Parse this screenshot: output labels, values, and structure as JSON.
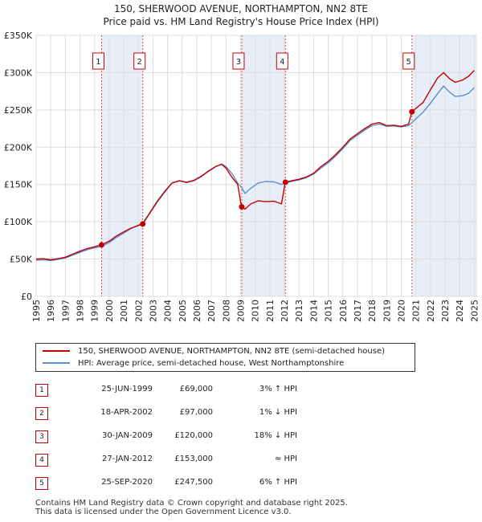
{
  "chart_data": {
    "type": "line",
    "title": "150, SHERWOOD AVENUE, NORTHAMPTON, NN2 8TE",
    "subtitle": "Price paid vs. HM Land Registry's House Price Index (HPI)",
    "x_range": [
      1995.0,
      2025.2
    ],
    "ylim": [
      0,
      350000
    ],
    "y_ticks": [
      {
        "value": 0,
        "label": "£0"
      },
      {
        "value": 50000,
        "label": "£50K"
      },
      {
        "value": 100000,
        "label": "£100K"
      },
      {
        "value": 150000,
        "label": "£150K"
      },
      {
        "value": 200000,
        "label": "£200K"
      },
      {
        "value": 250000,
        "label": "£250K"
      },
      {
        "value": 300000,
        "label": "£300K"
      },
      {
        "value": 350000,
        "label": "£350K"
      }
    ],
    "x_ticks": [
      "1995",
      "1996",
      "1997",
      "1998",
      "1999",
      "2000",
      "2001",
      "2002",
      "2003",
      "2004",
      "2005",
      "2006",
      "2007",
      "2008",
      "2009",
      "2010",
      "2011",
      "2012",
      "2013",
      "2014",
      "2015",
      "2016",
      "2017",
      "2018",
      "2019",
      "2020",
      "2021",
      "2022",
      "2023",
      "2024",
      "2025"
    ],
    "grid": true,
    "colors": {
      "property": "#c00000",
      "hpi": "#5b8fd0",
      "band": "#e8eef8",
      "vline": "#d05050"
    },
    "series": [
      {
        "name": "150, SHERWOOD AVENUE, NORTHAMPTON, NN2 8TE (semi-detached house)",
        "color": "#c00000",
        "points": [
          [
            1995.0,
            50000
          ],
          [
            1995.5,
            50500
          ],
          [
            1996.0,
            49000
          ],
          [
            1996.5,
            50500
          ],
          [
            1997.0,
            52500
          ],
          [
            1997.5,
            56500
          ],
          [
            1998.0,
            60500
          ],
          [
            1998.5,
            64000
          ],
          [
            1999.0,
            66500
          ],
          [
            1999.48,
            69000
          ],
          [
            2000.0,
            74000
          ],
          [
            2000.5,
            81000
          ],
          [
            2001.0,
            86500
          ],
          [
            2001.5,
            91500
          ],
          [
            2002.0,
            95000
          ],
          [
            2002.3,
            97000
          ],
          [
            2002.8,
            112000
          ],
          [
            2003.3,
            127000
          ],
          [
            2003.8,
            140000
          ],
          [
            2004.3,
            152000
          ],
          [
            2004.8,
            155000
          ],
          [
            2005.3,
            153000
          ],
          [
            2005.8,
            155500
          ],
          [
            2006.3,
            161000
          ],
          [
            2006.8,
            168000
          ],
          [
            2007.3,
            174000
          ],
          [
            2007.7,
            177000
          ],
          [
            2008.0,
            172000
          ],
          [
            2008.4,
            160000
          ],
          [
            2008.8,
            150000
          ],
          [
            2009.06,
            120000
          ],
          [
            2009.3,
            117000
          ],
          [
            2009.7,
            124000
          ],
          [
            2010.2,
            128000
          ],
          [
            2010.7,
            127000
          ],
          [
            2011.3,
            127500
          ],
          [
            2011.8,
            124000
          ],
          [
            2012.06,
            153000
          ],
          [
            2012.5,
            155000
          ],
          [
            2013.0,
            157000
          ],
          [
            2013.5,
            160000
          ],
          [
            2014.0,
            165000
          ],
          [
            2014.5,
            174000
          ],
          [
            2015.0,
            181000
          ],
          [
            2015.5,
            190000
          ],
          [
            2016.0,
            200000
          ],
          [
            2016.5,
            211000
          ],
          [
            2017.0,
            218000
          ],
          [
            2017.5,
            225000
          ],
          [
            2018.0,
            231000
          ],
          [
            2018.5,
            233000
          ],
          [
            2019.0,
            229000
          ],
          [
            2019.5,
            229500
          ],
          [
            2020.0,
            228000
          ],
          [
            2020.5,
            231000
          ],
          [
            2020.73,
            247500
          ],
          [
            2021.0,
            252000
          ],
          [
            2021.5,
            260000
          ],
          [
            2022.0,
            277000
          ],
          [
            2022.5,
            293000
          ],
          [
            2022.9,
            300000
          ],
          [
            2023.3,
            292000
          ],
          [
            2023.7,
            287000
          ],
          [
            2024.2,
            290000
          ],
          [
            2024.6,
            295000
          ],
          [
            2025.0,
            303000
          ]
        ]
      },
      {
        "name": "HPI: Average price, semi-detached house, West Northamptonshire",
        "color": "#5b8fd0",
        "points": [
          [
            1995.0,
            48500
          ],
          [
            1995.5,
            49000
          ],
          [
            1996.0,
            48000
          ],
          [
            1996.5,
            49500
          ],
          [
            1997.0,
            51500
          ],
          [
            1997.5,
            55000
          ],
          [
            1998.0,
            59000
          ],
          [
            1998.5,
            62500
          ],
          [
            1999.0,
            65000
          ],
          [
            1999.48,
            67000
          ],
          [
            2000.0,
            72000
          ],
          [
            2000.5,
            79000
          ],
          [
            2001.0,
            85000
          ],
          [
            2001.5,
            91000
          ],
          [
            2002.0,
            95500
          ],
          [
            2002.3,
            98000
          ],
          [
            2002.8,
            113000
          ],
          [
            2003.3,
            128000
          ],
          [
            2003.8,
            141000
          ],
          [
            2004.3,
            152000
          ],
          [
            2004.8,
            155000
          ],
          [
            2005.3,
            152500
          ],
          [
            2005.8,
            155000
          ],
          [
            2006.3,
            160500
          ],
          [
            2006.8,
            167500
          ],
          [
            2007.3,
            174000
          ],
          [
            2007.7,
            177500
          ],
          [
            2008.0,
            174000
          ],
          [
            2008.4,
            165000
          ],
          [
            2008.8,
            152000
          ],
          [
            2009.06,
            146000
          ],
          [
            2009.3,
            138000
          ],
          [
            2009.7,
            145000
          ],
          [
            2010.2,
            152000
          ],
          [
            2010.7,
            154000
          ],
          [
            2011.3,
            153500
          ],
          [
            2011.8,
            150000
          ],
          [
            2012.06,
            152000
          ],
          [
            2012.5,
            154000
          ],
          [
            2013.0,
            156000
          ],
          [
            2013.5,
            159000
          ],
          [
            2014.0,
            164000
          ],
          [
            2014.5,
            172000
          ],
          [
            2015.0,
            179000
          ],
          [
            2015.5,
            188000
          ],
          [
            2016.0,
            198000
          ],
          [
            2016.5,
            209000
          ],
          [
            2017.0,
            216000
          ],
          [
            2017.5,
            223000
          ],
          [
            2018.0,
            229000
          ],
          [
            2018.5,
            231000
          ],
          [
            2019.0,
            228000
          ],
          [
            2019.5,
            228500
          ],
          [
            2020.0,
            227000
          ],
          [
            2020.5,
            229000
          ],
          [
            2020.73,
            233000
          ],
          [
            2021.0,
            238000
          ],
          [
            2021.5,
            247000
          ],
          [
            2022.0,
            259000
          ],
          [
            2022.5,
            272000
          ],
          [
            2022.9,
            282000
          ],
          [
            2023.3,
            274000
          ],
          [
            2023.7,
            268000
          ],
          [
            2024.2,
            269000
          ],
          [
            2024.6,
            272000
          ],
          [
            2025.0,
            280000
          ]
        ]
      }
    ],
    "bands": [
      [
        1999.48,
        2002.3
      ],
      [
        2009.06,
        2012.06
      ],
      [
        2020.73,
        2025.2
      ]
    ],
    "sales": [
      {
        "id": "1",
        "x": 1999.48,
        "price": 69000
      },
      {
        "id": "2",
        "x": 2002.3,
        "price": 97000
      },
      {
        "id": "3",
        "x": 2009.08,
        "price": 120000
      },
      {
        "id": "4",
        "x": 2012.07,
        "price": 153000
      },
      {
        "id": "5",
        "x": 2020.73,
        "price": 247500
      }
    ]
  },
  "legend": {
    "property_label": "150, SHERWOOD AVENUE, NORTHAMPTON, NN2 8TE (semi-detached house)",
    "hpi_label": "HPI: Average price, semi-detached house, West Northamptonshire"
  },
  "transactions": [
    {
      "num": "1",
      "date": "25-JUN-1999",
      "price": "£69,000",
      "hpi": "3% ↑ HPI"
    },
    {
      "num": "2",
      "date": "18-APR-2002",
      "price": "£97,000",
      "hpi": "1% ↓ HPI"
    },
    {
      "num": "3",
      "date": "30-JAN-2009",
      "price": "£120,000",
      "hpi": "18% ↓ HPI"
    },
    {
      "num": "4",
      "date": "27-JAN-2012",
      "price": "£153,000",
      "hpi": "≈ HPI"
    },
    {
      "num": "5",
      "date": "25-SEP-2020",
      "price": "£247,500",
      "hpi": "6% ↑ HPI"
    }
  ],
  "footer": {
    "line1": "Contains HM Land Registry data © Crown copyright and database right 2025.",
    "line2": "This data is licensed under the Open Government Licence v3.0."
  }
}
